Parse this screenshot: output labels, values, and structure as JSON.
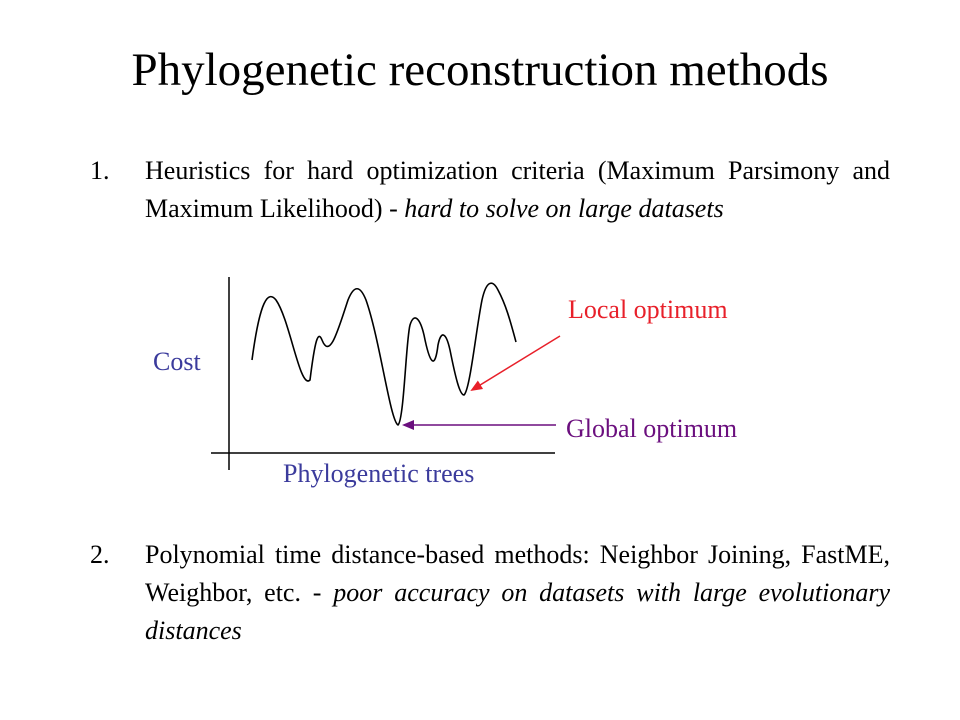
{
  "slide": {
    "title": "Phylogenetic reconstruction methods"
  },
  "items": [
    {
      "number": "1.",
      "text": "Heuristics for hard optimization criteria (Maximum Parsimony and Maximum Likelihood) -",
      "emphasis": "hard to solve on large datasets"
    },
    {
      "number": "2.",
      "text": "Polynomial time distance-based methods: Neighbor Joining, FastME, Weighbor, etc. -",
      "emphasis": "poor accuracy on datasets with large evolutionary distances"
    }
  ],
  "diagram": {
    "y_label": "Cost",
    "x_label": "Phylogenetic trees",
    "local_label": "Local optimum",
    "global_label": "Global optimum",
    "colors": {
      "axis_labels": "#3b3b9c",
      "local": "#e8202a",
      "global": "#6b0f7e",
      "curve": "#000000"
    }
  }
}
